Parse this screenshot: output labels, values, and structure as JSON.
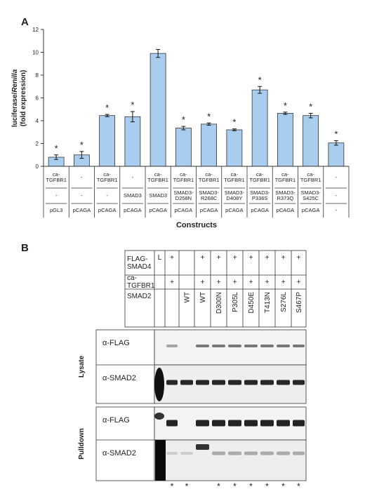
{
  "chart_data": {
    "type": "bar",
    "panel_label": "A",
    "ylabel": [
      "luciferase/",
      "Renilla",
      "(fold expression)"
    ],
    "xlabel": "Constructs",
    "values": [
      0.8,
      1.0,
      4.45,
      4.35,
      9.9,
      3.35,
      3.7,
      3.2,
      6.7,
      4.65,
      4.45,
      2.05
    ],
    "errors": [
      0.2,
      0.3,
      0.1,
      0.45,
      0.35,
      0.15,
      0.1,
      0.08,
      0.3,
      0.1,
      0.2,
      0.2
    ],
    "annotations": [
      "*",
      "*",
      "*",
      "*",
      null,
      "*",
      "*",
      "*",
      "*",
      "*",
      "*",
      "*"
    ],
    "rows": [
      [
        "ca-TGFBR1",
        "-",
        "ca-TGFBR1",
        "-",
        "ca-TGFBR1",
        "ca-TGFBR1",
        "ca-TGFBR1",
        "ca-TGFBR1",
        "ca-TGFBR1",
        "ca-TGFBR1",
        "ca-TGFBR1",
        "-"
      ],
      [
        "-",
        "-",
        "-",
        "SMAD3",
        "SMAD3",
        "SMAD3-D258N",
        "SMAD3-R268C",
        "SMAD3-D408Y",
        "SMAD3-P336S",
        "SMAD3-R373Q",
        "SMAD3-S425C",
        "-"
      ],
      [
        "pGL3",
        "pCAGA",
        "pCAGA",
        "pCAGA",
        "pCAGA",
        "pCAGA",
        "pCAGA",
        "pCAGA",
        "pCAGA",
        "pCAGA",
        "pCAGA",
        "-"
      ]
    ],
    "color": "#a9cdee",
    "ylim": [
      0,
      12
    ],
    "yticks": [
      0,
      2,
      4,
      6,
      8,
      10,
      12
    ]
  },
  "panel_b": {
    "panel_label": "B",
    "header_rows": [
      {
        "label": "FLAG-SMAD4",
        "cells": [
          "L",
          "+",
          null,
          "+",
          "+",
          "+",
          "+",
          "+",
          "+",
          "+"
        ]
      },
      {
        "label": "ca-TGFBR1",
        "cells": [
          null,
          "+",
          null,
          "+",
          "+",
          "+",
          "+",
          "+",
          "+",
          "+"
        ]
      },
      {
        "label": "SMAD2",
        "cells": [
          null,
          null,
          "WT",
          "WT",
          "D300N",
          "P305L",
          "D450E",
          "T413N",
          "S276L",
          "S467P"
        ]
      }
    ],
    "blots": [
      {
        "group": "Lysate",
        "probes": [
          "α-FLAG",
          "α-SMAD2"
        ]
      },
      {
        "group": "Pulldown",
        "probes": [
          "α-FLAG",
          "α-SMAD2"
        ]
      }
    ],
    "annotations": [
      null,
      "*",
      "*",
      null,
      "*",
      "*",
      "*",
      "*",
      "*",
      "*"
    ]
  }
}
